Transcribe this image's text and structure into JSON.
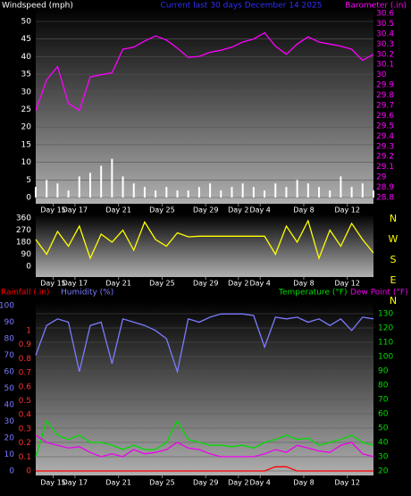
{
  "chart_data": [
    {
      "type": "combo",
      "title": "Current last 30 days December 14 2025",
      "x": [
        0,
        1,
        2,
        3,
        4,
        5,
        6,
        7,
        8,
        9,
        10,
        11,
        12,
        13,
        14,
        15,
        16,
        17,
        18,
        19,
        20,
        21,
        22,
        23,
        24,
        25,
        26,
        27,
        28,
        29,
        30,
        31
      ],
      "xlim": [
        0,
        31
      ],
      "xticks": [
        {
          "value": 1.6,
          "label": "Day 15"
        },
        {
          "value": 3.6,
          "label": "Day 17"
        },
        {
          "value": 7.6,
          "label": "Day 21"
        },
        {
          "value": 11.6,
          "label": "Day 25"
        },
        {
          "value": 15.6,
          "label": "Day 29"
        },
        {
          "value": 18.6,
          "label": "Day 2"
        },
        {
          "value": 20.6,
          "label": "Day 4"
        },
        {
          "value": 24.6,
          "label": "Day 8"
        },
        {
          "value": 28.6,
          "label": "Day 12"
        }
      ],
      "ylim": [
        0,
        50
      ],
      "yticks": [
        0,
        5,
        10,
        15,
        20,
        25,
        30,
        35,
        40,
        45,
        50
      ],
      "y2lim": [
        28.8,
        30.6
      ],
      "y2ticks": [
        28.8,
        28.9,
        29,
        29.1,
        29.2,
        29.3,
        29.4,
        29.5,
        29.6,
        29.7,
        29.8,
        29.9,
        30,
        30.1,
        30.2,
        30.3,
        30.4,
        30.5,
        30.6
      ],
      "grid": true,
      "series": [
        {
          "name": "Windspeed (mph)",
          "type": "bar",
          "color": "#ffffff",
          "axis": "y",
          "values": [
            3,
            5,
            4,
            2,
            6,
            7,
            9,
            11,
            6,
            4,
            3,
            2,
            3,
            2,
            2,
            3,
            4,
            2,
            3,
            4,
            3,
            2,
            4,
            3,
            5,
            4,
            3,
            2,
            6,
            3,
            4,
            2
          ]
        },
        {
          "name": "Barometer (.in)",
          "type": "line",
          "color": "#ff00ff",
          "axis": "y2",
          "values": [
            29.65,
            29.95,
            30.08,
            29.72,
            29.65,
            29.98,
            30.0,
            30.02,
            30.25,
            30.27,
            30.33,
            30.38,
            30.34,
            30.26,
            30.17,
            30.18,
            30.22,
            30.24,
            30.27,
            30.32,
            30.35,
            30.41,
            30.28,
            30.2,
            30.3,
            30.37,
            30.32,
            30.3,
            30.28,
            30.25,
            30.14,
            30.2
          ]
        }
      ]
    },
    {
      "type": "line",
      "x": [
        0,
        1,
        2,
        3,
        4,
        5,
        6,
        7,
        8,
        9,
        10,
        11,
        12,
        13,
        14,
        15,
        16,
        17,
        18,
        19,
        20,
        21,
        22,
        23,
        24,
        25,
        26,
        27,
        28,
        29,
        30,
        31
      ],
      "xlim": [
        0,
        31
      ],
      "xticks": [
        {
          "value": 1.6,
          "label": "Day 15"
        },
        {
          "value": 3.6,
          "label": "Day 17"
        },
        {
          "value": 7.6,
          "label": "Day 21"
        },
        {
          "value": 11.6,
          "label": "Day 25"
        },
        {
          "value": 15.6,
          "label": "Day 29"
        },
        {
          "value": 18.6,
          "label": "Day 2"
        },
        {
          "value": 20.6,
          "label": "Day 4"
        },
        {
          "value": 24.6,
          "label": "Day 8"
        },
        {
          "value": 28.6,
          "label": "Day 12"
        }
      ],
      "ylim": [
        0,
        360
      ],
      "yticks": [
        0,
        90,
        180,
        270,
        360
      ],
      "direction_labels": [
        "N",
        "W",
        "S",
        "E",
        "N"
      ],
      "grid": false,
      "series": [
        {
          "type": "line",
          "color": "#ffff00",
          "axis": "y",
          "values": [
            200,
            90,
            260,
            150,
            300,
            60,
            240,
            180,
            270,
            120,
            330,
            200,
            150,
            250,
            220,
            225,
            225,
            225,
            225,
            225,
            225,
            225,
            90,
            300,
            180,
            340,
            60,
            270,
            150,
            320,
            200,
            100
          ]
        }
      ]
    },
    {
      "type": "combo",
      "x": [
        0,
        1,
        2,
        3,
        4,
        5,
        6,
        7,
        8,
        9,
        10,
        11,
        12,
        13,
        14,
        15,
        16,
        17,
        18,
        19,
        20,
        21,
        22,
        23,
        24,
        25,
        26,
        27,
        28,
        29,
        30,
        31
      ],
      "xlim": [
        0,
        31
      ],
      "xticks": [
        {
          "value": 1.6,
          "label": "Day 15"
        },
        {
          "value": 3.6,
          "label": "Day 17"
        },
        {
          "value": 7.6,
          "label": "Day 21"
        },
        {
          "value": 11.6,
          "label": "Day 25"
        },
        {
          "value": 15.6,
          "label": "Day 29"
        },
        {
          "value": 18.6,
          "label": "Day 2"
        },
        {
          "value": 20.6,
          "label": "Day 4"
        },
        {
          "value": 24.6,
          "label": "Day 8"
        },
        {
          "value": 28.6,
          "label": "Day 12"
        }
      ],
      "ylim": [
        0,
        1
      ],
      "yticks": [
        0,
        0.1,
        0.2,
        0.3,
        0.4,
        0.5,
        0.6,
        0.7,
        0.8,
        0.9,
        1
      ],
      "y3lim": [
        0,
        100
      ],
      "y3ticks": [
        0,
        10,
        20,
        30,
        40,
        50,
        60,
        70,
        80,
        90,
        100
      ],
      "y2lim": [
        20,
        130
      ],
      "y2ticks": [
        20,
        30,
        40,
        50,
        60,
        70,
        80,
        90,
        100,
        110,
        120,
        130
      ],
      "grid": true,
      "series": [
        {
          "name": "Rainfall (.in)",
          "type": "line",
          "color": "#ff0000",
          "axis": "y",
          "values": [
            0,
            0,
            0,
            0,
            0,
            0,
            0,
            0,
            0,
            0,
            0,
            0,
            0,
            0,
            0,
            0,
            0,
            0,
            0,
            0,
            0,
            0,
            0.03,
            0.03,
            0,
            0,
            0,
            0,
            0,
            0,
            0,
            0
          ]
        },
        {
          "name": "Humidity (%)",
          "type": "line",
          "color": "#7b7bff",
          "axis": "y3",
          "values": [
            70,
            88,
            92,
            90,
            60,
            88,
            90,
            65,
            92,
            90,
            88,
            85,
            80,
            60,
            92,
            90,
            93,
            95,
            95,
            95,
            94,
            75,
            93,
            92,
            93,
            90,
            92,
            88,
            92,
            85,
            93,
            92
          ]
        },
        {
          "name": "Temperature (°F)",
          "type": "line",
          "color": "#00dd00",
          "axis": "y2",
          "values": [
            30,
            55,
            45,
            42,
            45,
            40,
            40,
            38,
            35,
            38,
            35,
            35,
            40,
            55,
            42,
            40,
            38,
            38,
            37,
            38,
            36,
            40,
            42,
            45,
            42,
            43,
            38,
            40,
            42,
            45,
            40,
            38
          ]
        },
        {
          "name": "Dew Point (°F)",
          "type": "line",
          "color": "#ee00ee",
          "axis": "y2",
          "values": [
            45,
            40,
            38,
            36,
            37,
            33,
            30,
            32,
            30,
            35,
            32,
            33,
            35,
            40,
            36,
            35,
            32,
            30,
            30,
            30,
            30,
            32,
            35,
            33,
            38,
            36,
            34,
            33,
            38,
            40,
            32,
            30
          ]
        }
      ]
    }
  ]
}
